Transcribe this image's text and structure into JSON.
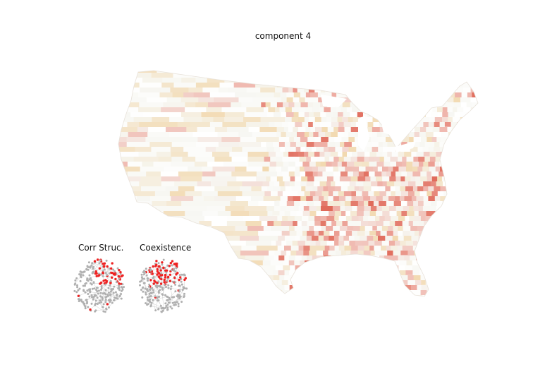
{
  "figure": {
    "title": "component 4",
    "insets": [
      {
        "label": "Corr Struc."
      },
      {
        "label": "Coexistence"
      }
    ],
    "colors": {
      "low_warm": "#f2d9b0",
      "neutral": "#f7f7f2",
      "mid_red": "#eeaaa0",
      "high_red": "#e06a5a",
      "node_gray": "#b0b0b0",
      "node_red": "#ee2222"
    }
  }
}
